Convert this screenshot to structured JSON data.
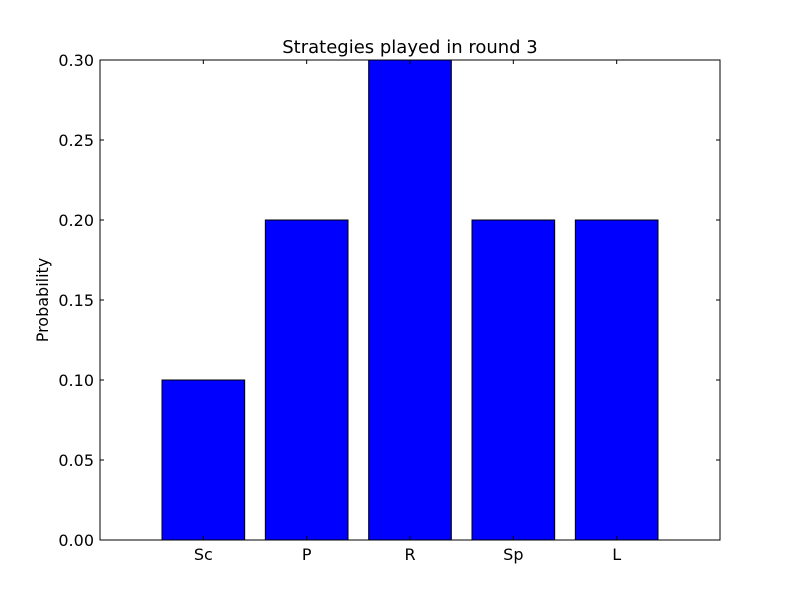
{
  "chart_data": {
    "type": "bar",
    "title": "Strategies played in round 3",
    "xlabel": "",
    "ylabel": "Probability",
    "categories": [
      "Sc",
      "P",
      "R",
      "Sp",
      "L"
    ],
    "values": [
      0.1,
      0.2,
      0.3,
      0.2,
      0.2
    ],
    "ylim": [
      0,
      0.3
    ],
    "yticks": [
      0.0,
      0.05,
      0.1,
      0.15,
      0.2,
      0.25,
      0.3
    ],
    "ytick_labels": [
      "0.00",
      "0.05",
      "0.10",
      "0.15",
      "0.20",
      "0.25",
      "0.30"
    ],
    "grid": false,
    "legend": "none",
    "bar_color": "#0000ff",
    "edge_color": "#000000"
  }
}
